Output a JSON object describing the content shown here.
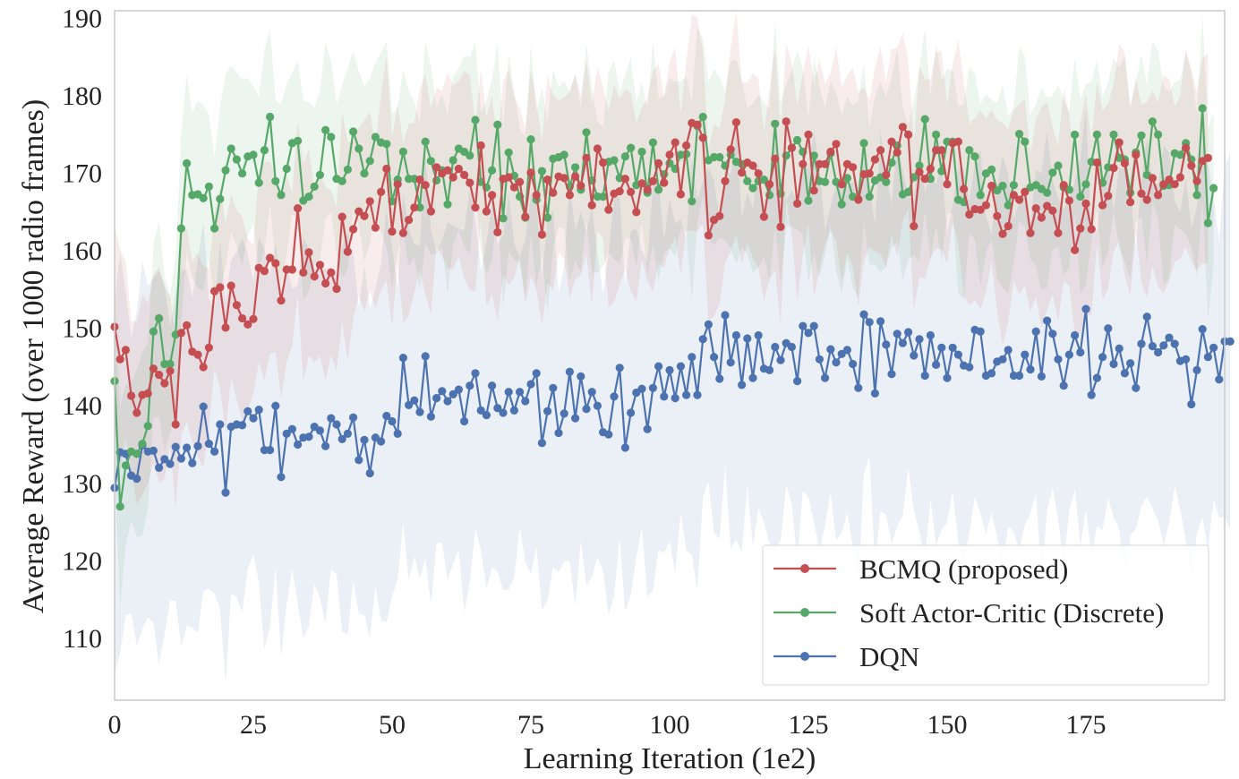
{
  "chart_data": {
    "type": "line",
    "title": "",
    "xlabel": "Learning Iteration (1e2)",
    "ylabel": "Average Reward (over 1000 radio frames)",
    "xlim": [
      0,
      200
    ],
    "ylim": [
      102,
      191
    ],
    "xticks": [
      0,
      25,
      50,
      75,
      100,
      125,
      150,
      175
    ],
    "yticks": [
      110,
      120,
      130,
      140,
      150,
      160,
      170,
      180,
      190
    ],
    "xtick_labels": [
      "0",
      "25",
      "50",
      "75",
      "100",
      "125",
      "150",
      "175"
    ],
    "ytick_labels": [
      "110",
      "120",
      "130",
      "140",
      "150",
      "160",
      "170",
      "180",
      "190"
    ],
    "grid": false,
    "legend_position": "lower-right",
    "x_range": [
      0,
      199
    ],
    "x_note": "one point per iteration, x = 0..199",
    "series": [
      {
        "name": "BCMQ (proposed)",
        "color": "#c44e52",
        "band_halfwidth": 12,
        "values": [
          150.2,
          146.0,
          147.2,
          141.3,
          139.1,
          141.4,
          141.6,
          144.8,
          144.0,
          142.9,
          144.5,
          137.6,
          149.4,
          150.4,
          147.0,
          146.6,
          145.0,
          147.5,
          154.8,
          155.3,
          150.1,
          155.5,
          153.0,
          151.3,
          150.5,
          151.2,
          157.8,
          157.4,
          159.1,
          158.4,
          153.6,
          157.6,
          157.6,
          165.5,
          157.2,
          159.8,
          156.7,
          158.2,
          155.8,
          157.2,
          155.1,
          164.4,
          159.9,
          162.8,
          165.1,
          164.5,
          166.4,
          163.0,
          167.6,
          170.6,
          162.5,
          168.6,
          162.3,
          164.0,
          165.6,
          169.2,
          168.5,
          165.1,
          170.8,
          170.0,
          170.4,
          169.5,
          170.6,
          169.8,
          168.8,
          165.6,
          173.6,
          165.1,
          167.2,
          162.4,
          169.3,
          169.5,
          168.2,
          168.9,
          164.4,
          170.1,
          167.2,
          162.1,
          169.2,
          167.5,
          169.6,
          169.4,
          167.2,
          169.6,
          168.4,
          172.0,
          165.9,
          173.2,
          171.4,
          165.3,
          167.4,
          167.7,
          169.3,
          167.6,
          165.0,
          168.7,
          167.9,
          169.0,
          171.3,
          168.8,
          172.4,
          174.0,
          167.3,
          173.6,
          176.5,
          176.3,
          174.6,
          162.0,
          164.0,
          164.5,
          169.0,
          173.1,
          176.6,
          170.1,
          171.4,
          171.0,
          170.0,
          164.4,
          168.6,
          171.9,
          163.1,
          176.7,
          173.3,
          166.1,
          171.2,
          175.0,
          167.8,
          171.2,
          171.2,
          172.8,
          173.8,
          168.6,
          171.2,
          170.8,
          166.6,
          169.9,
          170.0,
          171.8,
          173.0,
          169.8,
          174.1,
          172.7,
          176.0,
          175.0,
          163.2,
          170.2,
          169.3,
          170.6,
          173.0,
          173.0,
          168.6,
          173.9,
          174.1,
          168.0,
          164.7,
          165.4,
          165.3,
          165.9,
          168.4,
          164.5,
          162.2,
          163.2,
          167.2,
          166.6,
          167.6,
          162.3,
          165.5,
          164.3,
          165.8,
          165.2,
          162.3,
          168.5,
          166.5,
          160.1,
          162.9,
          166.1,
          162.8,
          171.4,
          165.9,
          167.1,
          170.7,
          174.0,
          171.3,
          166.3,
          172.4,
          167.4,
          166.6,
          169.4,
          167.2,
          168.6,
          169.2,
          168.6,
          169.5,
          173.3,
          171.0,
          169.0,
          171.6,
          172.0
        ]
      },
      {
        "name": "Soft Actor-Critic (Discrete)",
        "color": "#55a868",
        "band_halfwidth": 11,
        "values": [
          143.2,
          127.0,
          132.3,
          134.1,
          133.8,
          135.1,
          137.4,
          149.6,
          151.3,
          145.4,
          145.4,
          149.2,
          162.9,
          171.3,
          167.2,
          167.3,
          166.8,
          168.3,
          162.9,
          166.7,
          170.4,
          173.2,
          171.8,
          170.0,
          172.2,
          172.4,
          168.8,
          173.0,
          177.3,
          169.0,
          167.2,
          170.6,
          173.9,
          174.2,
          166.5,
          167.0,
          168.3,
          169.8,
          175.6,
          174.7,
          169.3,
          169.0,
          170.5,
          175.4,
          173.2,
          170.0,
          171.6,
          174.7,
          174.0,
          173.8,
          166.4,
          169.2,
          172.8,
          169.3,
          169.3,
          165.6,
          174.1,
          171.6,
          169.1,
          170.4,
          166.0,
          171.7,
          173.2,
          172.8,
          172.3,
          176.9,
          168.9,
          168.2,
          170.4,
          176.3,
          164.2,
          172.7,
          169.7,
          167.0,
          164.3,
          174.4,
          166.6,
          170.3,
          164.3,
          171.9,
          172.1,
          172.4,
          168.3,
          170.8,
          167.9,
          175.3,
          169.1,
          167.0,
          167.0,
          171.5,
          171.7,
          169.4,
          172.2,
          173.3,
          168.5,
          172.8,
          167.5,
          174.0,
          167.9,
          169.9,
          171.3,
          170.6,
          172.4,
          172.5,
          166.4,
          176.1,
          177.3,
          171.7,
          172.1,
          172.1,
          171.0,
          172.4,
          171.5,
          171.2,
          169.0,
          168.1,
          169.0,
          169.2,
          167.2,
          176.4,
          167.4,
          172.3,
          173.3,
          174.3,
          172.8,
          166.5,
          172.3,
          169.0,
          168.9,
          172.6,
          168.9,
          166.0,
          169.4,
          167.0,
          166.7,
          173.9,
          167.0,
          169.1,
          169.5,
          168.9,
          171.4,
          173.6,
          167.3,
          167.6,
          169.5,
          171.0,
          177.0,
          169.3,
          175.0,
          170.3,
          174.1,
          174.1,
          166.6,
          166.3,
          173.0,
          172.2,
          167.2,
          170.0,
          170.5,
          167.8,
          168.4,
          165.9,
          168.5,
          175.1,
          174.1,
          168.2,
          168.5,
          168.0,
          167.5,
          170.1,
          171.0,
          168.2,
          167.9,
          175.0,
          167.0,
          168.6,
          171.5,
          175.0,
          168.8,
          170.8,
          175.0,
          172.0,
          171.8,
          167.5,
          172.7,
          174.9,
          169.8,
          176.7,
          175.0,
          168.4,
          168.5,
          172.6,
          172.4,
          173.9,
          171.8,
          167.2,
          178.4,
          163.6,
          168.1
        ]
      },
      {
        "name": "DQN",
        "color": "#4c72b0",
        "band_halfwidth": 22,
        "values": [
          129.4,
          134.0,
          133.8,
          131.0,
          130.6,
          134.9,
          134.1,
          134.2,
          132.0,
          133.1,
          132.5,
          134.7,
          133.2,
          134.6,
          132.6,
          134.8,
          139.9,
          135.1,
          134.1,
          137.6,
          128.8,
          137.3,
          137.6,
          137.5,
          139.3,
          138.4,
          139.5,
          134.3,
          134.3,
          140.0,
          130.8,
          136.4,
          137.0,
          135.0,
          135.9,
          136.0,
          137.3,
          136.8,
          134.8,
          138.4,
          137.6,
          135.7,
          136.4,
          138.5,
          133.0,
          135.6,
          131.3,
          135.9,
          135.4,
          138.7,
          138.0,
          136.4,
          146.2,
          140.1,
          140.7,
          139.2,
          146.4,
          138.6,
          141.0,
          141.9,
          140.6,
          141.5,
          142.1,
          138.0,
          142.6,
          144.2,
          139.4,
          138.8,
          142.6,
          139.7,
          139.1,
          141.8,
          139.4,
          141.8,
          140.6,
          142.8,
          144.2,
          135.2,
          139.3,
          142.3,
          136.5,
          139.0,
          144.4,
          138.4,
          143.8,
          139.6,
          141.8,
          140.0,
          136.6,
          136.3,
          141.2,
          144.9,
          134.6,
          139.1,
          141.7,
          142.2,
          137.0,
          142.3,
          145.1,
          141.2,
          144.6,
          141.0,
          145.1,
          141.4,
          146.3,
          141.4,
          148.6,
          150.5,
          146.3,
          143.5,
          151.7,
          145.6,
          149.1,
          142.7,
          148.7,
          143.6,
          149.1,
          144.8,
          144.6,
          147.6,
          145.9,
          148.1,
          147.6,
          143.2,
          150.3,
          149.4,
          150.3,
          146.0,
          143.6,
          147.3,
          145.6,
          146.7,
          147.2,
          145.4,
          142.3,
          151.8,
          150.8,
          141.6,
          150.9,
          147.9,
          144.1,
          149.3,
          148.1,
          149.5,
          146.5,
          148.6,
          143.9,
          149.1,
          145.3,
          147.5,
          143.6,
          147.5,
          146.6,
          145.2,
          145.0,
          149.8,
          149.6,
          143.9,
          144.2,
          145.7,
          146.0,
          147.2,
          143.9,
          143.9,
          146.6,
          144.7,
          149.6,
          143.8,
          151.0,
          149.3,
          146.0,
          142.6,
          146.6,
          149.1,
          146.9,
          152.5,
          141.4,
          143.6,
          146.3,
          150.0,
          145.4,
          147.4,
          144.2,
          145.5,
          142.3,
          148.0,
          151.5,
          147.7,
          146.9,
          147.8,
          148.8,
          148.0,
          145.8,
          146.0,
          140.2,
          144.6,
          149.9,
          146.3,
          147.5,
          143.4,
          148.3,
          148.3
        ]
      }
    ]
  }
}
